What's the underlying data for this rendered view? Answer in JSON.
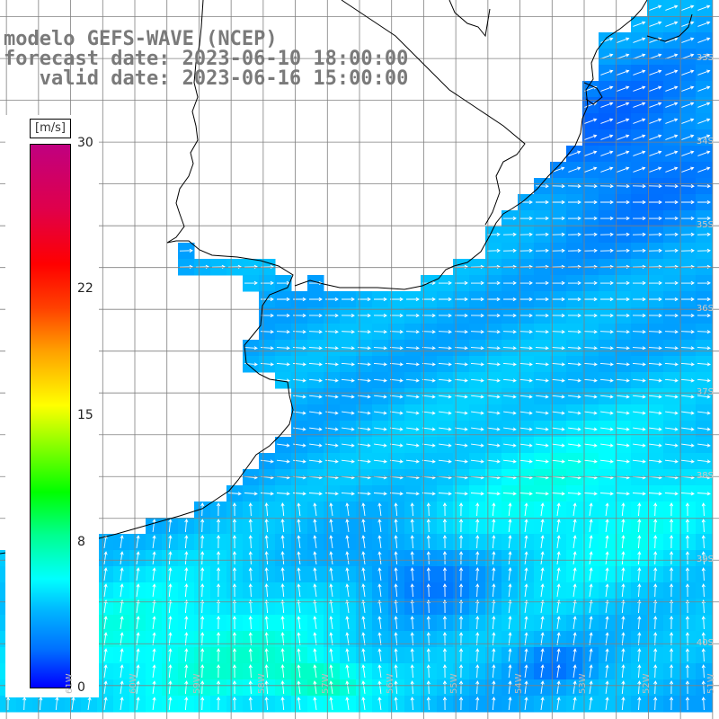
{
  "title": {
    "line1": "modelo GEFS-WAVE (NCEP)",
    "line2": "forecast date: 2023-06-10 18:00:00",
    "line3": "   valid date: 2023-06-16 15:00:00"
  },
  "colorbar": {
    "unit": "[m/s]",
    "ticks": [
      {
        "label": "30",
        "value": 30
      },
      {
        "label": "22",
        "value": 22
      },
      {
        "label": "15",
        "value": 15
      },
      {
        "label": "8",
        "value": 8
      },
      {
        "label": "0",
        "value": 0
      }
    ],
    "range": [
      0,
      30
    ],
    "colors": [
      "#0000ff",
      "#00ffff",
      "#00ff00",
      "#ffff00",
      "#ff0000",
      "#c00080"
    ]
  },
  "map": {
    "projection": "lat-lon grid",
    "variable": "wind speed with direction arrows",
    "lat_labels": [
      {
        "label": "33S",
        "lat": -33
      },
      {
        "label": "34S",
        "lat": -34
      },
      {
        "label": "35S",
        "lat": -35
      },
      {
        "label": "36S",
        "lat": -36
      },
      {
        "label": "37S",
        "lat": -37
      },
      {
        "label": "38S",
        "lat": -38
      },
      {
        "label": "39S",
        "lat": -39
      },
      {
        "label": "40S",
        "lat": -40
      }
    ],
    "lon_labels": [
      {
        "label": "61W",
        "lon": -61
      },
      {
        "label": "60W",
        "lon": -60
      },
      {
        "label": "59W",
        "lon": -59
      },
      {
        "label": "58W",
        "lon": -58
      },
      {
        "label": "57W",
        "lon": -57
      },
      {
        "label": "56W",
        "lon": -56
      },
      {
        "label": "55W",
        "lon": -55
      },
      {
        "label": "54W",
        "lon": -54
      },
      {
        "label": "53W",
        "lon": -53
      },
      {
        "label": "52W",
        "lon": -52
      },
      {
        "label": "51W",
        "lon": -51
      }
    ],
    "colors": {
      "land": "#ffffff",
      "grid": "#808080",
      "coast": "#000000",
      "arrow": "#ffffff"
    }
  }
}
